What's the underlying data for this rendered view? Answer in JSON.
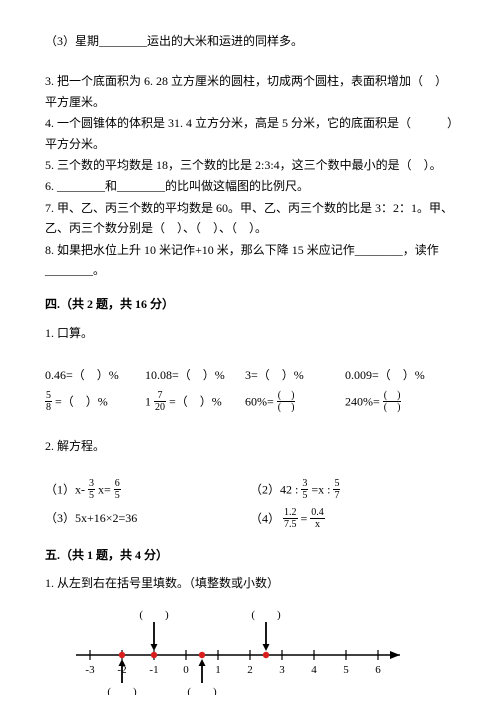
{
  "q2_3": "（3）星期________运出的大米和运进的同样多。",
  "q3": "3. 把一个底面积为 6. 28 立方厘米的圆柱，切成两个圆柱，表面积增加（ ）平方厘米。",
  "q4": "4. 一个圆锥体的体积是 31. 4 立方分米，高是 5 分米，它的底面积是（   ）平方分米。",
  "q5": "5. 三个数的平均数是 18，三个数的比是 2:3:4，这三个数中最小的是（ ）。",
  "q6": "6. ________和________的比叫做这幅图的比例尺。",
  "q7": "7. 甲、乙、丙三个数的平均数是 60。甲、乙、丙三个数的比是 3：2：1。甲、乙、丙三个数分别是（ ）、（ ）、（ ）。",
  "q8": "8. 如果把水位上升 10 米记作+10 米，那么下降 15 米应记作________，读作________。",
  "sec4": "四.（共 2 题，共 16 分）",
  "sec4_1": "1. 口算。",
  "koush": {
    "a1": "0.46=（ ）%",
    "a2": "10.08=（ ）%",
    "a3": "3=（ ）%",
    "a4": "0.009=（ ）%",
    "b2_eq": " =（ ）%",
    "b3": "60%=",
    "b4": "240%="
  },
  "sec4_2": "2. 解方程。",
  "eq1_pre": "（1）x-",
  "eq1_mid": " x= ",
  "eq2_pre": "（2）42 : ",
  "eq2_mid": " =x : ",
  "eq3": "（3）5x+16×2=36",
  "eq4_pre": "（4）",
  "sec5": "五.（共 1 题，共 4 分）",
  "sec5_1": "1. 从左到右在括号里填数。（填整数或小数）",
  "frac": {
    "five_eighths_n": "5",
    "five_eighths_d": "8",
    "one_7_20_n": "7",
    "one_7_20_d": "20",
    "three_fifths_n": "3",
    "three_fifths_d": "5",
    "six_fifths_n": "6",
    "six_fifths_d": "5",
    "five_sevenths_n": "5",
    "five_sevenths_d": "7",
    "pp_n": "( )",
    "pp_d": "( )",
    "eq4a_n": "1.2",
    "eq4a_d": "7.5",
    "eq4b_n": "0.4",
    "eq4b_d": "x"
  },
  "numline": {
    "ticks": [
      "-3",
      "-2",
      "-1",
      "0",
      "1",
      "2",
      "3",
      "4",
      "5",
      "6"
    ],
    "top_paren": "(  )",
    "bot_paren": "(  )",
    "colors": {
      "axis": "#000000",
      "dot": "#d81e1e"
    },
    "top_positions_units": [
      -1,
      2.5
    ],
    "bot_positions_units": [
      -2,
      0.5
    ],
    "dot_positions_units": [
      -2,
      -1,
      0.5,
      2.5
    ]
  }
}
